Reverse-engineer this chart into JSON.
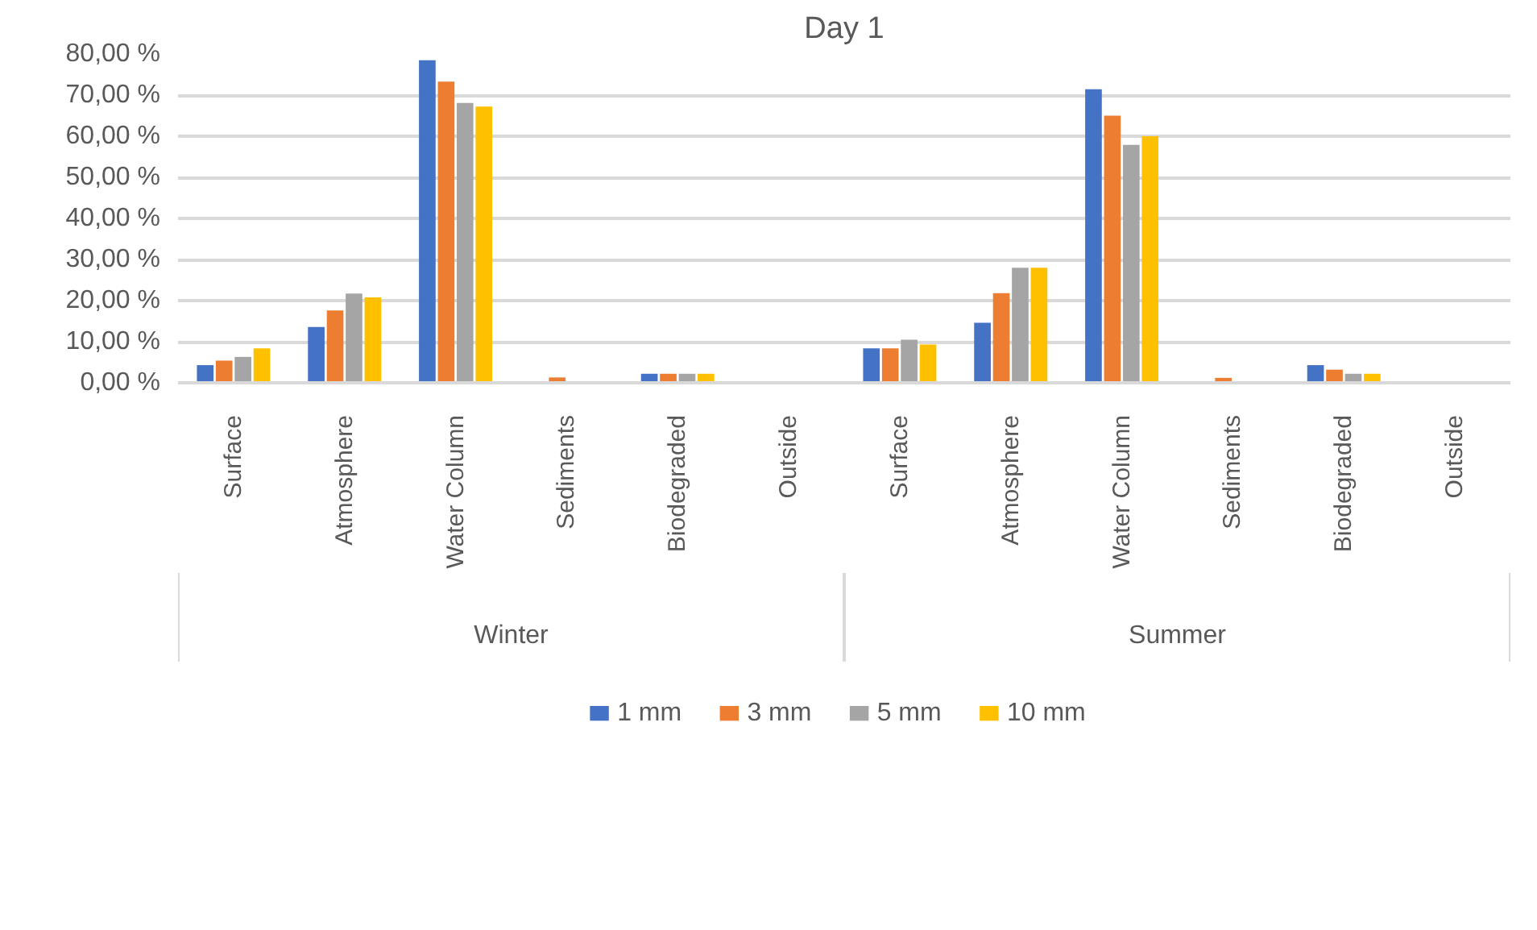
{
  "chart_data": {
    "type": "bar",
    "title": "Day 1",
    "categories": [
      "Surface",
      "Atmosphere",
      "Water Column",
      "Sediments",
      "Biodegraded",
      "Outside",
      "Surface",
      "Atmosphere",
      "Water Column",
      "Sediments",
      "Biodegraded",
      "Outside"
    ],
    "series": [
      {
        "name": "1 mm",
        "color": "#4472c4",
        "values": [
          4.3,
          13.6,
          78.5,
          0,
          2.2,
          0,
          8.4,
          14.6,
          71.4,
          0,
          4.3,
          0
        ]
      },
      {
        "name": "3 mm",
        "color": "#ed7d31",
        "values": [
          5.4,
          17.6,
          73.3,
          1.3,
          2.2,
          0,
          8.4,
          21.8,
          65.0,
          1.2,
          3.2,
          0
        ]
      },
      {
        "name": "5 mm",
        "color": "#a5a5a5",
        "values": [
          6.3,
          21.7,
          68.1,
          0,
          2.2,
          0,
          10.5,
          28.0,
          57.9,
          0,
          2.2,
          0
        ]
      },
      {
        "name": "10 mm",
        "color": "#ffc000",
        "values": [
          8.4,
          20.8,
          67.2,
          0,
          2.2,
          0,
          9.3,
          28.0,
          60.0,
          0,
          2.2,
          0
        ]
      }
    ],
    "annotations": [
      "Winter",
      "Summer"
    ],
    "ylim": [
      0,
      80
    ],
    "yticks": [
      {
        "value": 0,
        "label": "0,00 %"
      },
      {
        "value": 10,
        "label": "10,00 %"
      },
      {
        "value": 20,
        "label": "20,00 %"
      },
      {
        "value": 30,
        "label": "30,00 %"
      },
      {
        "value": 40,
        "label": "40,00 %"
      },
      {
        "value": 50,
        "label": "50,00 %"
      },
      {
        "value": 60,
        "label": "60,00 %"
      },
      {
        "value": 70,
        "label": "70,00 %"
      },
      {
        "value": 80,
        "label": "80,00 %"
      }
    ],
    "grid": "y",
    "legend": "bottom"
  }
}
